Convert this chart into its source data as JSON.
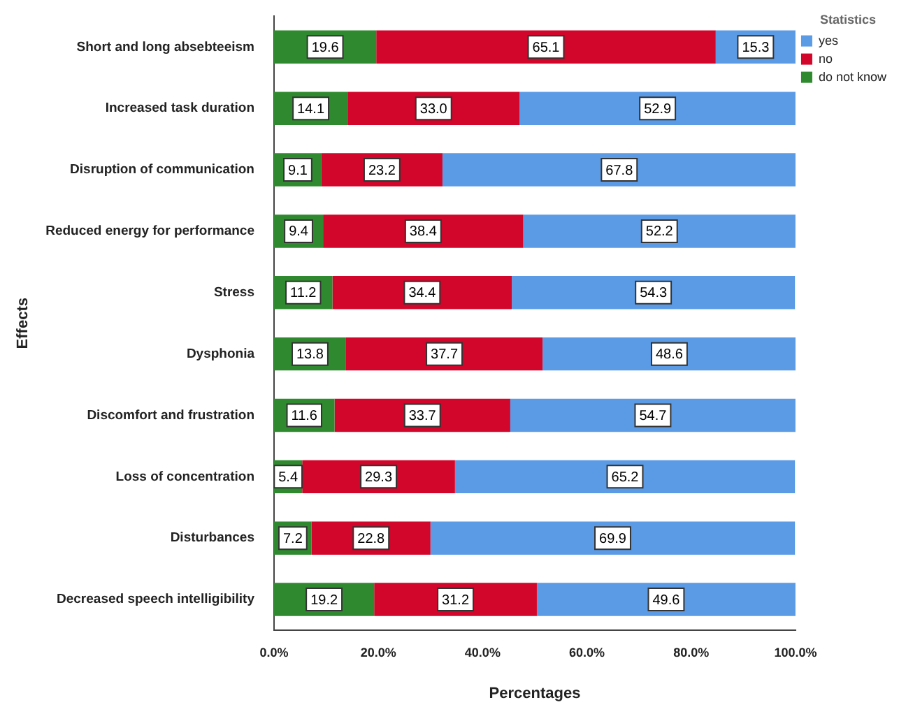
{
  "chart_data": {
    "type": "bar",
    "orientation": "horizontal",
    "stacked": true,
    "xlabel": "Percentages",
    "ylabel": "Effects",
    "legend_title": "Statistics",
    "legend": "right",
    "categories": [
      "Short and long absebteeism",
      "Increased task duration",
      "Disruption of communication",
      "Reduced energy for performance",
      "Stress",
      "Dysphonia",
      "Discomfort and frustration",
      "Loss of concentration",
      "Disturbances",
      "Decreased speech intelligibility"
    ],
    "series": [
      {
        "name": "do not know",
        "color": "#2f8a2f",
        "values": [
          19.6,
          14.1,
          9.1,
          9.4,
          11.2,
          13.8,
          11.6,
          5.4,
          7.2,
          19.2
        ],
        "value_labels": [
          "19.6",
          "14.1",
          "9.1",
          "9.4",
          "11.2",
          "13.8",
          "11.6",
          "5.4",
          "7.2",
          "19.2"
        ]
      },
      {
        "name": "no",
        "color": "#d2062a",
        "values": [
          65.1,
          33.0,
          23.2,
          38.4,
          34.4,
          37.7,
          33.7,
          29.3,
          22.8,
          31.2
        ],
        "value_labels": [
          "65.1",
          "33.0",
          "23.2",
          "38.4",
          "34.4",
          "37.7",
          "33.7",
          "29.3",
          "22.8",
          "31.2"
        ]
      },
      {
        "name": "yes",
        "color": "#5b9be6",
        "values": [
          15.3,
          52.9,
          67.8,
          52.2,
          54.3,
          48.6,
          54.7,
          65.2,
          69.9,
          49.6
        ],
        "value_labels": [
          "15.3",
          "52.9",
          "67.8",
          "52.2",
          "54.3",
          "48.6",
          "54.7",
          "65.2",
          "69.9",
          "49.6"
        ]
      }
    ],
    "xlim": [
      0,
      100
    ],
    "xticks": [
      {
        "value": 0,
        "label": "0.0%"
      },
      {
        "value": 20,
        "label": "20.0%"
      },
      {
        "value": 40,
        "label": "40.0%"
      },
      {
        "value": 60,
        "label": "60.0%"
      },
      {
        "value": 80,
        "label": "80.0%"
      },
      {
        "value": 100,
        "label": "100.0%"
      }
    ],
    "grid": false
  }
}
